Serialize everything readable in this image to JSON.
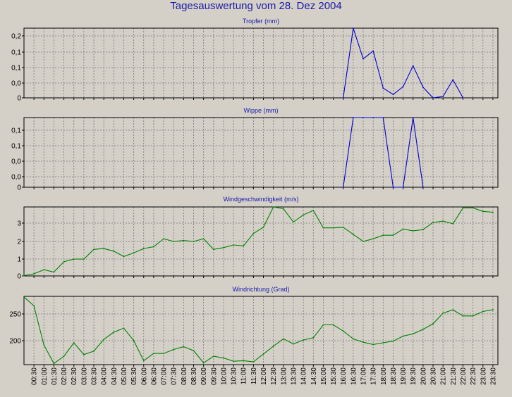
{
  "page_title": "Tagesauswertung vom 28. Dez 2004",
  "colors": {
    "background": "#d4d0c8",
    "title": "#1a1aa8",
    "blue_series": "#0000cc",
    "green_series": "#008000",
    "grid": "#777777"
  },
  "chart_data": [
    {
      "type": "line",
      "title": "Tropfer (mm)",
      "ytick_labels": [
        "0,2",
        "0,1",
        "0,1",
        "0,0",
        "0"
      ],
      "ylim": [
        0,
        0.25
      ],
      "grid": true,
      "color": "#0000cc",
      "series": [
        {
          "x": [
            16.0,
            16.5,
            17.0,
            17.5,
            18.0,
            18.5,
            19.0,
            19.5,
            20.0,
            20.5,
            21.0,
            21.5,
            22.0
          ],
          "y": [
            0.0,
            0.25,
            0.14,
            0.168,
            0.035,
            0.012,
            0.04,
            0.115,
            0.038,
            0.0,
            0.005,
            0.065,
            0.0
          ]
        }
      ]
    },
    {
      "type": "line",
      "title": "Wippe (mm)",
      "ytick_labels": [
        "0,1",
        "0,1",
        "0,0",
        "0,0",
        "0"
      ],
      "ylim": [
        0,
        0.25
      ],
      "grid": true,
      "color": "#0000cc",
      "series": [
        {
          "x": [
            16.0,
            16.5,
            17.0,
            17.5,
            18.0,
            18.5,
            19.0,
            19.5,
            20.0
          ],
          "y": [
            0.0,
            0.25,
            0.25,
            0.25,
            0.25,
            0.0,
            0.0,
            0.25,
            0.0
          ]
        }
      ]
    },
    {
      "type": "line",
      "title": "Windgeschwindigkeit (m/s)",
      "ytick_labels": [
        "3",
        "2",
        "1",
        "0"
      ],
      "ylim": [
        0,
        3.9
      ],
      "grid": true,
      "color": "#008000",
      "series": [
        {
          "x": [
            0,
            0.5,
            1,
            1.5,
            2,
            2.5,
            3,
            3.5,
            4,
            4.5,
            5,
            5.5,
            6,
            6.5,
            7,
            7.5,
            8,
            8.5,
            9,
            9.5,
            10,
            10.5,
            11,
            11.5,
            12,
            12.5,
            13,
            13.5,
            14,
            14.5,
            15,
            15.5,
            16,
            16.5,
            17,
            17.5,
            18,
            18.5,
            19,
            19.5,
            20,
            20.5,
            21,
            21.5,
            22,
            22.5,
            23,
            23.5
          ],
          "y": [
            0.02,
            0.12,
            0.35,
            0.22,
            0.8,
            0.95,
            0.95,
            1.5,
            1.55,
            1.4,
            1.1,
            1.3,
            1.55,
            1.65,
            2.1,
            1.95,
            2.0,
            1.95,
            2.1,
            1.5,
            1.6,
            1.75,
            1.7,
            2.4,
            2.75,
            3.9,
            3.8,
            3.05,
            3.45,
            3.7,
            2.72,
            2.72,
            2.75,
            2.35,
            1.95,
            2.1,
            2.3,
            2.3,
            2.65,
            2.55,
            2.62,
            3.02,
            3.1,
            2.95,
            3.85,
            3.85,
            3.65,
            3.6
          ]
        }
      ]
    },
    {
      "type": "line",
      "title": "Windrichtung (Grad)",
      "ytick_labels": [
        "250",
        "200"
      ],
      "ylim": [
        157,
        279
      ],
      "grid": true,
      "color": "#008000",
      "xtick_labels": [
        "00:30",
        "01:00",
        "01:30",
        "02:00",
        "02:30",
        "03:00",
        "03:30",
        "04:00",
        "04:30",
        "05:00",
        "05:30",
        "06:00",
        "06:30",
        "07:00",
        "07:30",
        "08:00",
        "08:30",
        "09:00",
        "09:30",
        "10:00",
        "10:30",
        "11:00",
        "11:30",
        "12:00",
        "12:30",
        "13:00",
        "13:30",
        "14:00",
        "14:30",
        "15:00",
        "15:30",
        "16:00",
        "16:30",
        "17:00",
        "17:30",
        "18:00",
        "18:30",
        "19:00",
        "19:30",
        "20:00",
        "20:30",
        "21:00",
        "21:30",
        "22:00",
        "22:30",
        "23:00",
        "23:30"
      ],
      "series": [
        {
          "x": [
            0,
            0.5,
            1,
            1.5,
            2,
            2.5,
            3,
            3.5,
            4,
            4.5,
            5,
            5.5,
            6,
            6.5,
            7,
            7.5,
            8,
            8.5,
            9,
            9.5,
            10,
            10.5,
            11,
            11.5,
            12,
            12.5,
            13,
            13.5,
            14,
            14.5,
            15,
            15.5,
            16,
            16.5,
            17,
            17.5,
            18,
            18.5,
            19,
            19.5,
            20,
            20.5,
            21,
            21.5,
            22,
            22.5,
            23,
            23.5
          ],
          "y": [
            278,
            262,
            192,
            159,
            172,
            196,
            175,
            181,
            202,
            215,
            222,
            200,
            164,
            177,
            177,
            184,
            189,
            182,
            160,
            172,
            169,
            163,
            164,
            162,
            176,
            190,
            203,
            194,
            201,
            205,
            228,
            228,
            217,
            203,
            197,
            193,
            196,
            199,
            208,
            212,
            220,
            230,
            249,
            255,
            244,
            244,
            252,
            255
          ]
        }
      ]
    }
  ]
}
